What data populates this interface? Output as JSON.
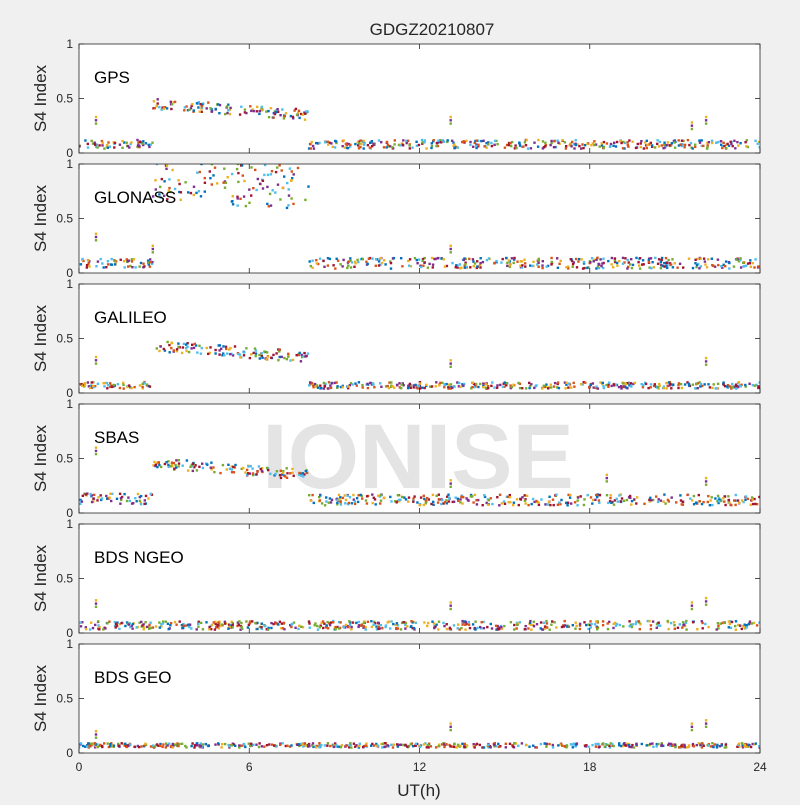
{
  "figure": {
    "title": "GDGZ20210807",
    "xlabel": "UT(h)",
    "watermark": "IONISE"
  },
  "colors": [
    "#0072bd",
    "#d95319",
    "#edb120",
    "#7e2f8e",
    "#77ac30",
    "#4dbeee",
    "#a2142f"
  ],
  "chart_data": [
    {
      "type": "scatter",
      "panel": "GPS",
      "ylabel": "S4 Index",
      "xlim": [
        0,
        24
      ],
      "ylim": [
        0,
        1
      ],
      "xticks": [
        0,
        6,
        12,
        18,
        24
      ],
      "yticks": [
        0,
        0.5,
        1
      ],
      "grid": false,
      "segments": [
        {
          "x": [
            0,
            2.6
          ],
          "mean": 0.08,
          "spread": 0.04
        },
        {
          "x": [
            2.6,
            8.1
          ],
          "y_start": 0.45,
          "y_end": 0.35,
          "spread": 0.05
        },
        {
          "x": [
            8.1,
            24
          ],
          "mean": 0.08,
          "spread": 0.04
        }
      ],
      "spikes": [
        {
          "x": 0.6,
          "y": 0.33
        },
        {
          "x": 13.1,
          "y": 0.33
        },
        {
          "x": 21.6,
          "y": 0.28
        },
        {
          "x": 22.1,
          "y": 0.33
        }
      ]
    },
    {
      "type": "scatter",
      "panel": "GLONASS",
      "ylabel": "S4 Index",
      "xlim": [
        0,
        24
      ],
      "ylim": [
        0,
        1
      ],
      "xticks": [
        0,
        6,
        12,
        18,
        24
      ],
      "yticks": [
        0,
        0.5,
        1
      ],
      "grid": false,
      "segments": [
        {
          "x": [
            0,
            2.6
          ],
          "mean": 0.09,
          "spread": 0.04
        },
        {
          "x": [
            2.6,
            8.1
          ],
          "y_start": 0.85,
          "y_end": 0.78,
          "spread": 0.2
        },
        {
          "x": [
            8.1,
            24
          ],
          "mean": 0.09,
          "spread": 0.05
        }
      ],
      "spikes": [
        {
          "x": 0.6,
          "y": 0.36
        },
        {
          "x": 2.6,
          "y": 0.25
        },
        {
          "x": 13.1,
          "y": 0.25
        }
      ]
    },
    {
      "type": "scatter",
      "panel": "GALILEO",
      "ylabel": "S4 Index",
      "xlim": [
        0,
        24
      ],
      "ylim": [
        0,
        1
      ],
      "xticks": [
        0,
        6,
        12,
        18,
        24
      ],
      "yticks": [
        0,
        0.5,
        1
      ],
      "grid": false,
      "segments": [
        {
          "x": [
            0,
            2.6
          ],
          "mean": 0.07,
          "spread": 0.03
        },
        {
          "x": [
            2.6,
            8.1
          ],
          "y_start": 0.43,
          "y_end": 0.33,
          "spread": 0.05
        },
        {
          "x": [
            8.1,
            24
          ],
          "mean": 0.07,
          "spread": 0.03
        }
      ],
      "spikes": [
        {
          "x": 0.6,
          "y": 0.33
        },
        {
          "x": 13.1,
          "y": 0.3
        },
        {
          "x": 22.1,
          "y": 0.32
        }
      ]
    },
    {
      "type": "scatter",
      "panel": "SBAS",
      "ylabel": "S4 Index",
      "xlim": [
        0,
        24
      ],
      "ylim": [
        0,
        1
      ],
      "xticks": [
        0,
        6,
        12,
        18,
        24
      ],
      "yticks": [
        0,
        0.5,
        1
      ],
      "grid": false,
      "segments": [
        {
          "x": [
            0,
            2.6
          ],
          "mean": 0.13,
          "spread": 0.05
        },
        {
          "x": [
            2.6,
            8.1
          ],
          "y_start": 0.46,
          "y_end": 0.35,
          "spread": 0.05
        },
        {
          "x": [
            8.1,
            24
          ],
          "mean": 0.12,
          "spread": 0.05
        }
      ],
      "spikes": [
        {
          "x": 0.6,
          "y": 0.6
        },
        {
          "x": 13.1,
          "y": 0.3
        },
        {
          "x": 18.6,
          "y": 0.35
        },
        {
          "x": 22.1,
          "y": 0.32
        }
      ]
    },
    {
      "type": "scatter",
      "panel": "BDS NGEO",
      "ylabel": "S4 Index",
      "xlim": [
        0,
        24
      ],
      "ylim": [
        0,
        1
      ],
      "xticks": [
        0,
        6,
        12,
        18,
        24
      ],
      "yticks": [
        0,
        0.5,
        1
      ],
      "grid": false,
      "segments": [
        {
          "x": [
            0,
            24
          ],
          "mean": 0.07,
          "spread": 0.04
        }
      ],
      "spikes": [
        {
          "x": 0.6,
          "y": 0.3
        },
        {
          "x": 13.1,
          "y": 0.28
        },
        {
          "x": 21.6,
          "y": 0.28
        },
        {
          "x": 22.1,
          "y": 0.32
        }
      ]
    },
    {
      "type": "scatter",
      "panel": "BDS GEO",
      "ylabel": "S4 Index",
      "xlim": [
        0,
        24
      ],
      "ylim": [
        0,
        1
      ],
      "xticks": [
        0,
        6,
        12,
        18,
        24
      ],
      "yticks": [
        0,
        0.5,
        1
      ],
      "grid": false,
      "segments": [
        {
          "x": [
            0,
            24
          ],
          "mean": 0.07,
          "spread": 0.02
        }
      ],
      "spikes": [
        {
          "x": 0.6,
          "y": 0.2
        },
        {
          "x": 13.1,
          "y": 0.27
        },
        {
          "x": 21.6,
          "y": 0.27
        },
        {
          "x": 22.1,
          "y": 0.3
        }
      ]
    }
  ]
}
